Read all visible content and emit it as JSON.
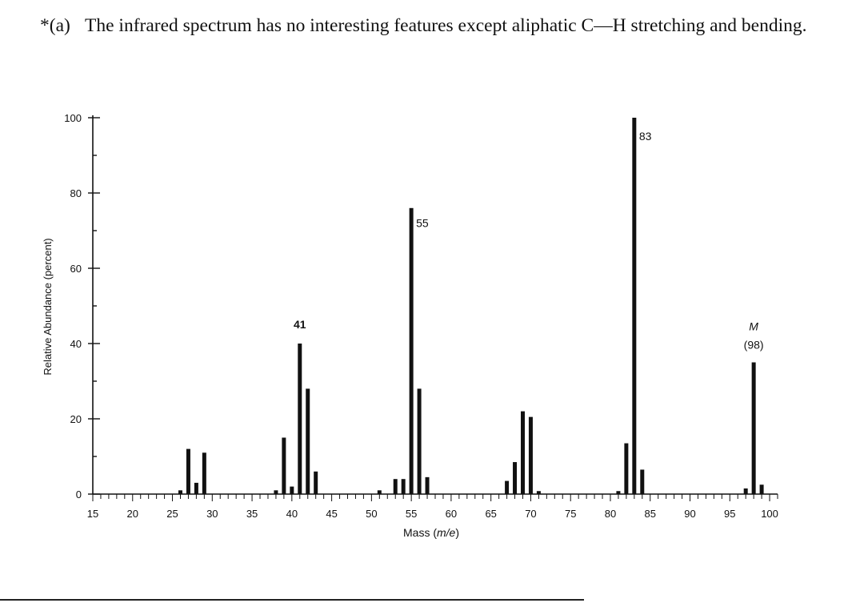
{
  "problem": {
    "marker": "*(a)",
    "text": "The infrared spectrum has no interesting features except aliphatic C—H stretching and bending."
  },
  "chart_data": {
    "type": "bar",
    "xlabel_prefix": "Mass (",
    "xlabel_italic": "m/e",
    "xlabel_suffix": ")",
    "ylabel": "Relative Abundance (percent)",
    "xlim": [
      15,
      101
    ],
    "ylim": [
      0,
      100
    ],
    "xticks": [
      15,
      20,
      25,
      30,
      35,
      40,
      45,
      50,
      55,
      60,
      65,
      70,
      75,
      80,
      85,
      90,
      95,
      100
    ],
    "yticks": [
      0,
      20,
      40,
      60,
      80,
      100
    ],
    "grid": false,
    "peaks": [
      {
        "mz": 26,
        "abundance": 1
      },
      {
        "mz": 27,
        "abundance": 12
      },
      {
        "mz": 28,
        "abundance": 3
      },
      {
        "mz": 29,
        "abundance": 11
      },
      {
        "mz": 38,
        "abundance": 1
      },
      {
        "mz": 39,
        "abundance": 15
      },
      {
        "mz": 40,
        "abundance": 2
      },
      {
        "mz": 41,
        "abundance": 40
      },
      {
        "mz": 42,
        "abundance": 28
      },
      {
        "mz": 43,
        "abundance": 6
      },
      {
        "mz": 51,
        "abundance": 1
      },
      {
        "mz": 53,
        "abundance": 4
      },
      {
        "mz": 54,
        "abundance": 4
      },
      {
        "mz": 55,
        "abundance": 76
      },
      {
        "mz": 56,
        "abundance": 28
      },
      {
        "mz": 57,
        "abundance": 4.5
      },
      {
        "mz": 67,
        "abundance": 3.5
      },
      {
        "mz": 68,
        "abundance": 8.5
      },
      {
        "mz": 69,
        "abundance": 22
      },
      {
        "mz": 70,
        "abundance": 20.5
      },
      {
        "mz": 71,
        "abundance": 0.8
      },
      {
        "mz": 81,
        "abundance": 0.8
      },
      {
        "mz": 82,
        "abundance": 13.5
      },
      {
        "mz": 83,
        "abundance": 100
      },
      {
        "mz": 84,
        "abundance": 6.5
      },
      {
        "mz": 97,
        "abundance": 1.5
      },
      {
        "mz": 98,
        "abundance": 35
      },
      {
        "mz": 99,
        "abundance": 2.5
      }
    ],
    "annotations": [
      {
        "text": "41",
        "mz": 41,
        "y": 44,
        "anchor": "middle",
        "bold": true
      },
      {
        "text": "55",
        "mz": 55,
        "y": 71,
        "anchor": "start",
        "bold": false
      },
      {
        "text": "83",
        "mz": 83,
        "y": 94,
        "anchor": "start",
        "bold": false
      },
      {
        "text": "M",
        "mz": 98,
        "y": 43.5,
        "anchor": "middle",
        "italic": true
      },
      {
        "text": "(98)",
        "mz": 98,
        "y": 38.6,
        "anchor": "middle",
        "bold": false
      }
    ]
  }
}
